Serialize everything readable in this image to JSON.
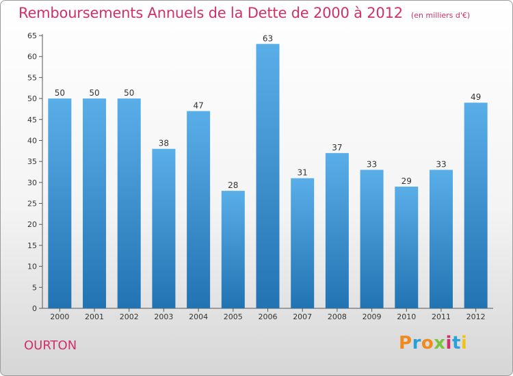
{
  "header": {
    "title": "Remboursements Annuels de la Dette de 2000 à 2012",
    "unit": "(en milliers d'€)"
  },
  "footer": {
    "commune": "OURTON",
    "logo": "Proxiti"
  },
  "colors": {
    "title": "#d0306a",
    "bar_top": "#5aaee8",
    "bar_bottom": "#2273b2",
    "logo": [
      "#f08a1c",
      "#2aa0d8",
      "#f08a1c",
      "#7cc242",
      "#d0306a",
      "#2aa0d8",
      "#f0c21c"
    ]
  },
  "chart_data": {
    "type": "bar",
    "title": "Remboursements Annuels de la Dette de 2000 à 2012",
    "xlabel": "",
    "ylabel": "",
    "categories": [
      "2000",
      "2001",
      "2002",
      "2003",
      "2004",
      "2005",
      "2006",
      "2007",
      "2008",
      "2009",
      "2010",
      "2011",
      "2012"
    ],
    "values": [
      50,
      50,
      50,
      38,
      47,
      28,
      63,
      31,
      37,
      33,
      29,
      33,
      49
    ],
    "ylim": [
      0,
      65
    ],
    "yticks": [
      0,
      5,
      10,
      15,
      20,
      25,
      30,
      35,
      40,
      45,
      50,
      55,
      60,
      65
    ],
    "grid": false,
    "data_labels": true
  }
}
